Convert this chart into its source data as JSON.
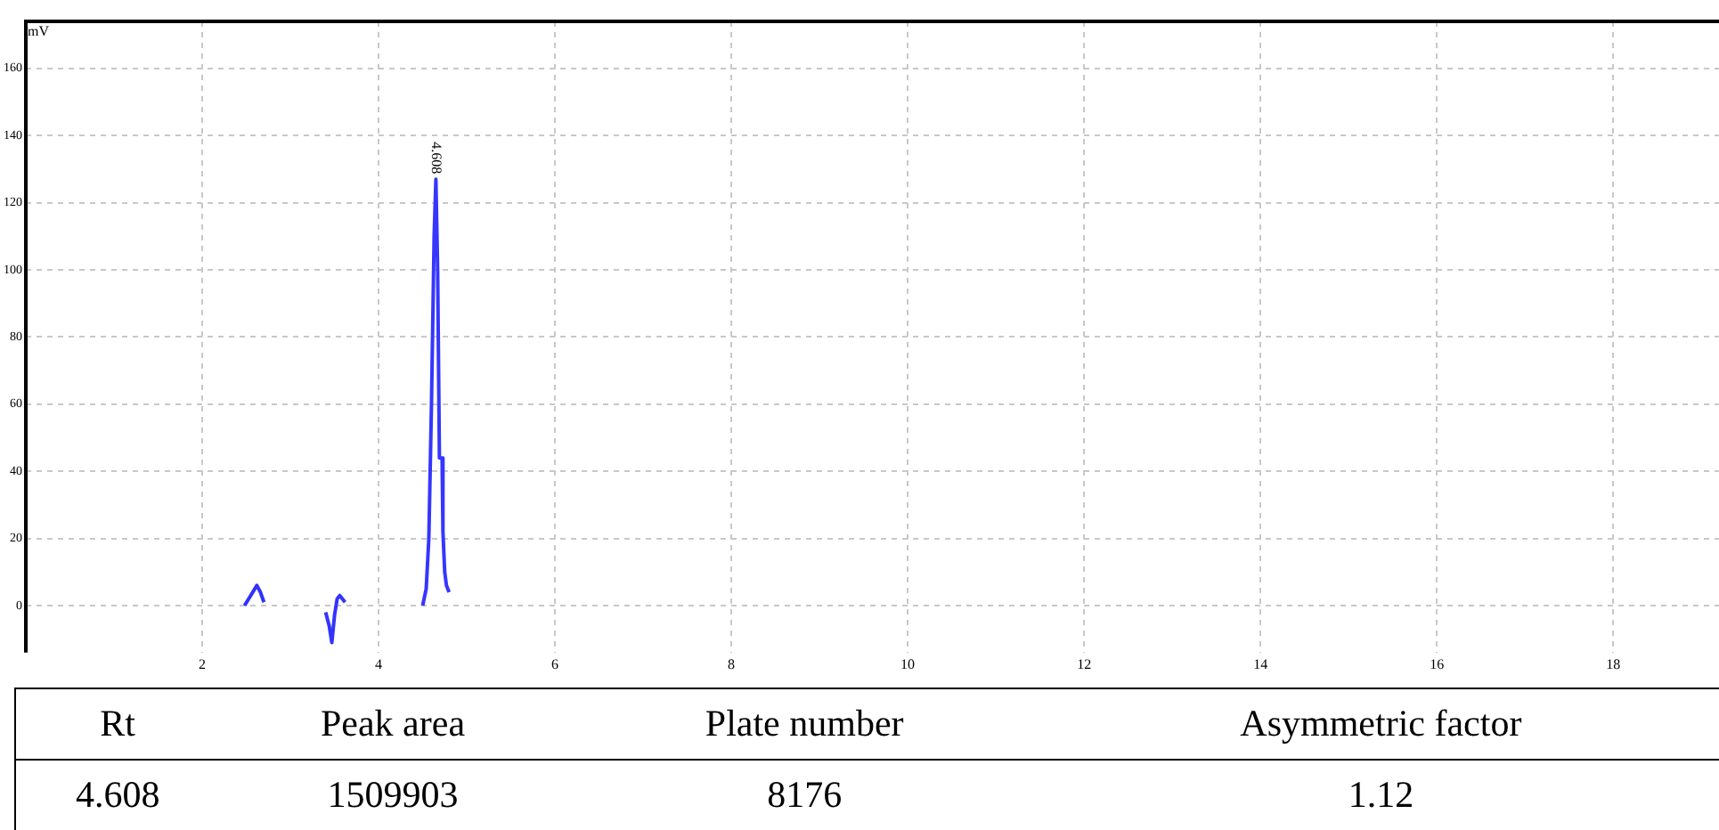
{
  "chart_data": {
    "type": "line",
    "ylabel": "mV",
    "series": [
      {
        "color": "#3030ff",
        "x": [
          2.48,
          2.55,
          2.62,
          2.66,
          2.7
        ],
        "values": [
          0,
          3,
          6,
          4,
          1
        ]
      },
      {
        "color": "#3333ff",
        "x": [
          3.4,
          3.44,
          3.47,
          3.5,
          3.53,
          3.56,
          3.62
        ],
        "values": [
          -2,
          -6,
          -11,
          -3,
          2,
          3,
          1
        ]
      },
      {
        "color": "#3636ff",
        "x": [
          4.5,
          4.54,
          4.57,
          4.6,
          4.63,
          4.65,
          4.67,
          4.69,
          4.72,
          4.73,
          4.75,
          4.77,
          4.8
        ],
        "values": [
          0,
          5,
          20,
          60,
          110,
          127,
          100,
          44,
          44,
          22,
          10,
          6,
          4
        ]
      }
    ],
    "xlim": [
      0,
      19.2
    ],
    "ylim": [
      -14,
      174
    ],
    "xticks": [
      2,
      4,
      6,
      8,
      10,
      12,
      14,
      16,
      18
    ],
    "yticks": [
      0,
      20,
      40,
      60,
      80,
      100,
      120,
      140,
      160
    ],
    "grid": true,
    "legend": false,
    "marker": "none",
    "line_style": "solid",
    "annotations": [
      {
        "text": "4.608",
        "x": 4.65,
        "y": 127
      },
      "Rt",
      "Peak area",
      "Plate number",
      "Asymmetric factor",
      "4.608",
      "1509903",
      "8176",
      "1.12"
    ]
  }
}
